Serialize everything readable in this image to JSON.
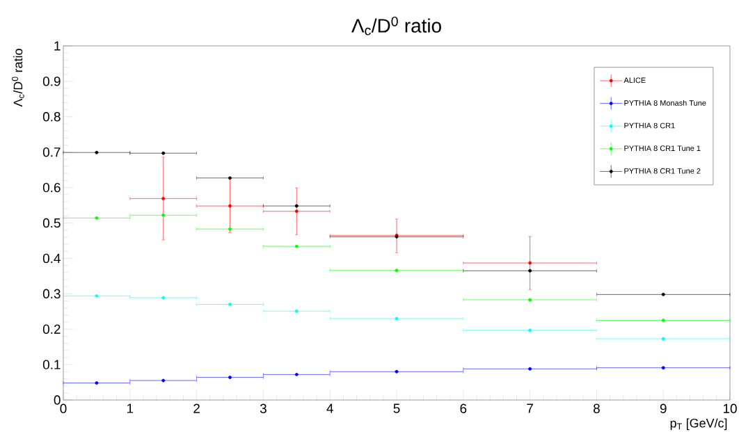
{
  "chart_data": {
    "type": "scatter",
    "title": "Λ$_{c}$/D$^{0}$ ratio",
    "xlabel": "p$_{T}$ [GeV/c]",
    "ylabel": "Λ$_{c}$/D$^{0}$ ratio",
    "xlim": [
      0,
      10
    ],
    "ylim": [
      0,
      1
    ],
    "xticks": [
      0,
      1,
      2,
      3,
      4,
      5,
      6,
      7,
      8,
      9,
      10
    ],
    "yticks": [
      0,
      0.1,
      0.2,
      0.3,
      0.4,
      0.5,
      0.6,
      0.7,
      0.8,
      0.9,
      1
    ],
    "legend": "top right",
    "marker": "circle",
    "series": [
      {
        "name": "ALICE",
        "color": "#ff0000",
        "x": [
          1.5,
          2.5,
          3.5,
          5,
          7
        ],
        "values": [
          0.569,
          0.548,
          0.533,
          0.465,
          0.387
        ],
        "xerrors": [
          0.5,
          0.5,
          0.5,
          1,
          1
        ],
        "errors": [
          [
            0.452,
            0.686
          ],
          [
            0.473,
            0.625
          ],
          [
            0.467,
            0.599
          ],
          [
            0.416,
            0.511
          ],
          [
            0.312,
            0.462
          ]
        ]
      },
      {
        "name": "PYTHIA 8 Monash Tune",
        "color": "#0000ff",
        "x": [
          0.5,
          1.5,
          2.5,
          3.5,
          5,
          7,
          9
        ],
        "values": [
          0.048,
          0.055,
          0.064,
          0.072,
          0.08,
          0.088,
          0.091
        ],
        "xerrors": [
          0.5,
          0.5,
          0.5,
          0.5,
          1,
          1,
          1
        ]
      },
      {
        "name": "PYTHIA 8 CR1",
        "color": "#00ffff",
        "x": [
          0.5,
          1.5,
          2.5,
          3.5,
          5,
          7,
          9
        ],
        "values": [
          0.294,
          0.289,
          0.27,
          0.251,
          0.23,
          0.197,
          0.173
        ],
        "xerrors": [
          0.5,
          0.5,
          0.5,
          0.5,
          1,
          1,
          1
        ]
      },
      {
        "name": "PYTHIA 8 CR1 Tune 1",
        "color": "#00ff00",
        "x": [
          0.5,
          1.5,
          2.5,
          3.5,
          5,
          7,
          9
        ],
        "values": [
          0.514,
          0.522,
          0.483,
          0.434,
          0.366,
          0.283,
          0.225
        ],
        "xerrors": [
          0.5,
          0.5,
          0.5,
          0.5,
          1,
          1,
          1
        ]
      },
      {
        "name": "PYTHIA 8 CR1 Tune 2",
        "color": "#000000",
        "x": [
          0.5,
          1.5,
          2.5,
          3.5,
          5,
          7,
          9
        ],
        "values": [
          0.699,
          0.697,
          0.627,
          0.548,
          0.461,
          0.365,
          0.298
        ],
        "xerrors": [
          0.5,
          0.5,
          0.5,
          0.5,
          1,
          1,
          1
        ]
      }
    ]
  }
}
